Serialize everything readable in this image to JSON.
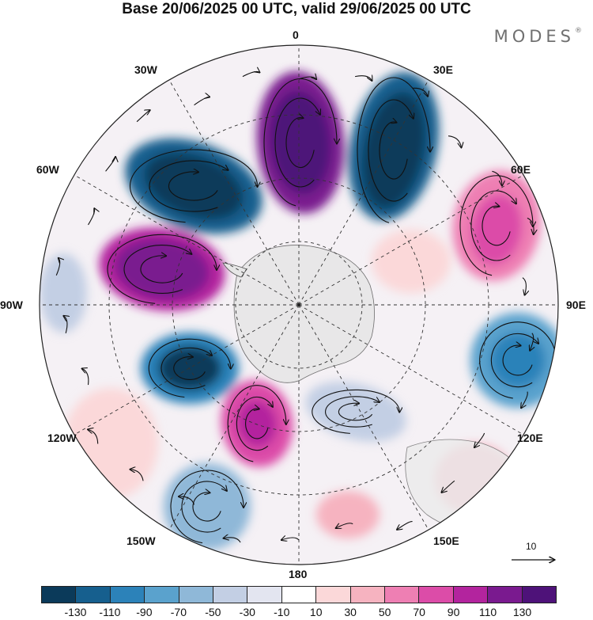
{
  "title": "Base 20/06/2025 00 UTC, valid 29/06/2025 00 UTC",
  "brand": "MODES",
  "brand_mark": "®",
  "longitude_labels": [
    "0",
    "30E",
    "60E",
    "90E",
    "120E",
    "150E",
    "180",
    "150W",
    "120W",
    "90W",
    "60W",
    "30W"
  ],
  "vector_reference": "10",
  "colorbar": {
    "ticks": [
      "-130",
      "-110",
      "-90",
      "-70",
      "-50",
      "-30",
      "-10",
      "10",
      "30",
      "50",
      "70",
      "90",
      "110",
      "130"
    ],
    "colors": [
      "#0b3a5a",
      "#165f8e",
      "#2c82b9",
      "#5aa2cd",
      "#8fb8d8",
      "#c3cfe4",
      "#e3e5f0",
      "#ffffff",
      "#fbd8d9",
      "#f6b3c0",
      "#ee7fb3",
      "#dc4ca8",
      "#b3249e",
      "#7a1a8f",
      "#4e1279"
    ]
  },
  "colors": {
    "land": "#e8e8e8",
    "streamline": "#111111"
  }
}
